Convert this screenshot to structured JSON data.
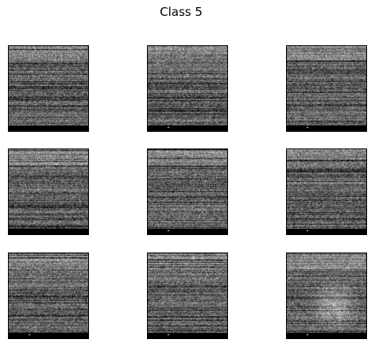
{
  "figure": {
    "title": "Class 5"
  },
  "grid": {
    "rows": 3,
    "cols": 3,
    "image_type": "grayscale noise spectrogram patch",
    "colors": {
      "background": "#ffffff",
      "frame": "#000000"
    }
  }
}
